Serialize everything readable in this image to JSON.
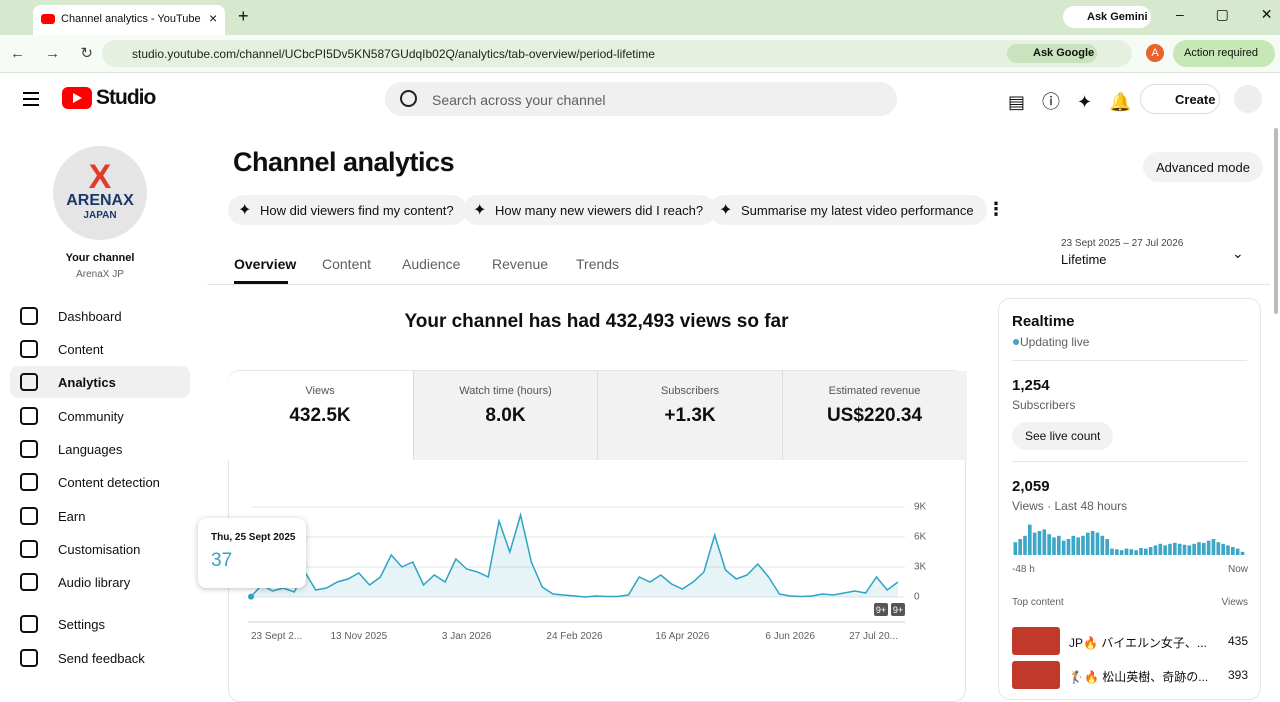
{
  "browser": {
    "tab_title": "Channel analytics - YouTube Studio",
    "url": "studio.youtube.com/channel/UCbcPI5Dv5KN587GUdqIb02Q/analytics/tab-overview/period-lifetime",
    "ask_gemini": "Ask Gemini",
    "ask_google": "Ask Google",
    "avatar": "A",
    "action_required": "Action required"
  },
  "header": {
    "logo": "Studio",
    "search_placeholder": "Search across your channel",
    "create": "Create"
  },
  "sidebar": {
    "logo_word": "ARENAX",
    "logo_sub": "JAPAN",
    "your_channel": "Your channel",
    "channel_name": "ArenaX JP",
    "nav": [
      "Dashboard",
      "Content",
      "Analytics",
      "Community",
      "Languages",
      "Content detection",
      "Earn",
      "Customisation",
      "Audio library"
    ],
    "bottom": [
      "Settings",
      "Send feedback"
    ]
  },
  "page": {
    "title": "Channel analytics",
    "advanced": "Advanced mode",
    "prompts": [
      "How did viewers find my content?",
      "How many new viewers did I reach?",
      "Summarise my latest video performance"
    ],
    "tabs": [
      "Overview",
      "Content",
      "Audience",
      "Revenue",
      "Trends"
    ],
    "period_range": "23 Sept 2025 – 27 Jul 2026",
    "period": "Lifetime",
    "headline": "Your channel has had 432,493 views so far",
    "metrics": [
      {
        "label": "Views",
        "value": "432.5K"
      },
      {
        "label": "Watch time (hours)",
        "value": "8.0K"
      },
      {
        "label": "Subscribers",
        "value": "+1.3K"
      },
      {
        "label": "Estimated revenue",
        "value": "US$220.34"
      }
    ],
    "tooltip_date": "Thu, 25 Sept 2025",
    "badges": [
      "9+",
      "9+"
    ]
  },
  "chart_data": {
    "type": "line",
    "color": "#2fa3c4",
    "categories": [
      "23 Sept 2...",
      null,
      null,
      null,
      null,
      null,
      null,
      null,
      null,
      null,
      "13 Nov 2025",
      null,
      null,
      null,
      null,
      null,
      null,
      null,
      null,
      null,
      "3 Jan 2026",
      null,
      null,
      null,
      null,
      null,
      null,
      null,
      null,
      null,
      "24 Feb 2026",
      null,
      null,
      null,
      null,
      null,
      null,
      null,
      null,
      null,
      "16 Apr 2026",
      null,
      null,
      null,
      null,
      null,
      null,
      null,
      null,
      null,
      "6 Jun 2026",
      null,
      null,
      null,
      null,
      null,
      null,
      null,
      null,
      null,
      "27 Jul 20..."
    ],
    "values": [
      37,
      1200,
      600,
      900,
      500,
      2500,
      700,
      900,
      1500,
      1800,
      2400,
      1200,
      2000,
      4200,
      3000,
      3500,
      1200,
      2200,
      1500,
      3800,
      2800,
      2500,
      2000,
      7600,
      4500,
      8200,
      3500,
      1000,
      300,
      200,
      100,
      0,
      100,
      50,
      50,
      200,
      2000,
      1500,
      2200,
      1300,
      800,
      1500,
      2500,
      6200,
      2700,
      1800,
      2200,
      3300,
      2000,
      300,
      100,
      50,
      100,
      300,
      200,
      400,
      600,
      400,
      2000,
      700,
      1500
    ],
    "ylim": [
      0,
      9000
    ],
    "yticks": [
      {
        "value": 9000,
        "label": "9K"
      },
      {
        "value": 6000,
        "label": "6K"
      },
      {
        "value": 3000,
        "label": "3K"
      },
      0
    ],
    "grid": true
  },
  "realtime": {
    "title": "Realtime",
    "status": "Updating live",
    "subscribers": "1,254",
    "subscribers_label": "Subscribers",
    "see_live": "See live count",
    "views": "2,059",
    "views_label": "Views · Last 48 hours",
    "chart": {
      "type": "bar",
      "color": "#3ea6c6",
      "values": [
        40,
        50,
        60,
        95,
        70,
        75,
        80,
        65,
        55,
        60,
        45,
        50,
        60,
        55,
        60,
        70,
        75,
        70,
        60,
        50,
        20,
        18,
        15,
        20,
        18,
        15,
        22,
        20,
        25,
        30,
        35,
        30,
        35,
        38,
        35,
        32,
        30,
        35,
        40,
        38,
        45,
        50,
        40,
        35,
        30,
        25,
        20,
        10
      ],
      "ylim": [
        0,
        100
      ],
      "start_label": "-48 h",
      "end_label": "Now"
    },
    "top_content": "Top content",
    "views_col": "Views",
    "items": [
      {
        "title": "JP🔥 バイエルン女子、...",
        "views": "435"
      },
      {
        "title": "🏌🔥 松山英樹、奇跡の...",
        "views": "393"
      }
    ]
  }
}
